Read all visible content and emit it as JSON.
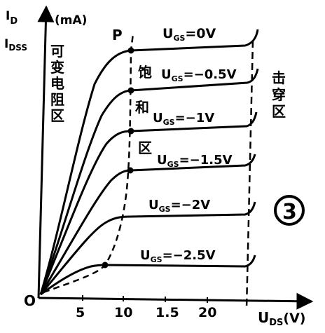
{
  "axes": {
    "y_label_main": "I",
    "y_label_sub": "D",
    "y_unit": "(mA)",
    "idss_main": "I",
    "idss_sub": "DSS",
    "origin": "O",
    "x_label_main": "U",
    "x_label_sub": "DS",
    "x_unit": "(V)",
    "x_ticks": [
      "5",
      "10",
      "1.5",
      "20"
    ]
  },
  "point_p": "P",
  "regions": {
    "variable_resistance": [
      "可",
      "变",
      "电",
      "阻",
      "区"
    ],
    "saturation": [
      "饱",
      "和",
      "区"
    ],
    "breakdown": [
      "击",
      "穿",
      "区"
    ]
  },
  "badge": "3",
  "curves": [
    {
      "label": "U",
      "sub": "GS",
      "eq": "=0V"
    },
    {
      "label": "U",
      "sub": "GS",
      "eq": "=−0.5V"
    },
    {
      "label": "U",
      "sub": "GS",
      "eq": "=−1V"
    },
    {
      "label": "U",
      "sub": "GS",
      "eq": "=−1.5V"
    },
    {
      "label": "U",
      "sub": "GS",
      "eq": "=−2V"
    },
    {
      "label": "U",
      "sub": "GS",
      "eq": "=−2.5V"
    }
  ]
}
